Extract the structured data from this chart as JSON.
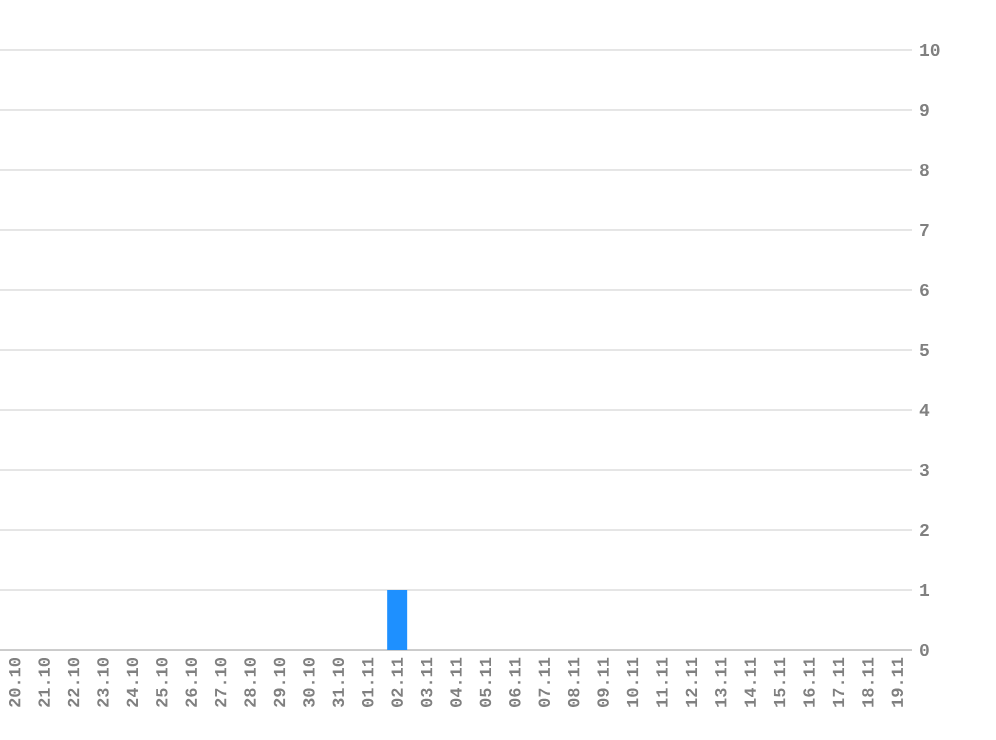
{
  "chart_data": {
    "type": "bar",
    "categories": [
      "20.10",
      "21.10",
      "22.10",
      "23.10",
      "24.10",
      "25.10",
      "26.10",
      "27.10",
      "28.10",
      "29.10",
      "30.10",
      "31.10",
      "01.11",
      "02.11",
      "03.11",
      "04.11",
      "05.11",
      "06.11",
      "07.11",
      "08.11",
      "09.11",
      "10.11",
      "11.11",
      "12.11",
      "13.11",
      "14.11",
      "15.11",
      "16.11",
      "17.11",
      "18.11",
      "19.11"
    ],
    "values": [
      0,
      0,
      0,
      0,
      0,
      0,
      0,
      0,
      0,
      0,
      0,
      0,
      0,
      1,
      0,
      0,
      0,
      0,
      0,
      0,
      0,
      0,
      0,
      0,
      0,
      0,
      0,
      0,
      0,
      0,
      0
    ],
    "color": "#1e90ff",
    "ylim": [
      0,
      10
    ],
    "yticks": [
      0,
      1,
      2,
      3,
      4,
      5,
      6,
      7,
      8,
      9,
      10
    ],
    "grid": "y"
  }
}
